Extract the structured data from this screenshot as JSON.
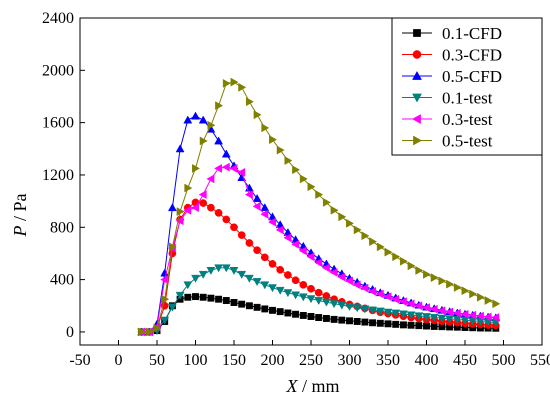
{
  "chart_data": {
    "type": "line",
    "xlabel": {
      "var": "X",
      "unit": " / mm"
    },
    "ylabel": {
      "var": "P",
      "unit": " / Pa"
    },
    "xlim": [
      -50,
      550
    ],
    "ylim": [
      -100,
      2400
    ],
    "xticks": [
      -50,
      0,
      50,
      100,
      150,
      200,
      250,
      300,
      350,
      400,
      450,
      500,
      550
    ],
    "yticks": [
      0,
      400,
      800,
      1200,
      1600,
      2000,
      2400
    ],
    "legend_position": "top-right",
    "series": [
      {
        "name": "0.1-CFD",
        "color": "#000000",
        "marker": "square",
        "x": [
          30,
          40,
          50,
          60,
          70,
          80,
          90,
          100,
          110,
          120,
          130,
          140,
          150,
          160,
          170,
          180,
          190,
          200,
          210,
          220,
          230,
          240,
          250,
          260,
          270,
          280,
          290,
          300,
          310,
          320,
          330,
          340,
          350,
          360,
          370,
          380,
          390,
          400,
          410,
          420,
          430,
          440,
          450,
          460,
          470,
          480,
          490
        ],
        "y": [
          0,
          0,
          10,
          80,
          200,
          250,
          265,
          270,
          265,
          258,
          250,
          240,
          225,
          212,
          200,
          188,
          176,
          165,
          155,
          145,
          135,
          126,
          118,
          110,
          103,
          96,
          90,
          85,
          80,
          75,
          70,
          66,
          62,
          58,
          54,
          51,
          48,
          45,
          42,
          40,
          38,
          36,
          34,
          32,
          30,
          29,
          28
        ]
      },
      {
        "name": "0.3-CFD",
        "color": "#ff0000",
        "marker": "circle",
        "x": [
          30,
          40,
          50,
          60,
          70,
          80,
          90,
          100,
          110,
          120,
          130,
          140,
          150,
          160,
          170,
          180,
          190,
          200,
          210,
          220,
          230,
          240,
          250,
          260,
          270,
          280,
          290,
          300,
          310,
          320,
          330,
          340,
          350,
          360,
          370,
          380,
          390,
          400,
          410,
          420,
          430,
          440,
          450,
          460,
          470,
          480,
          490
        ],
        "y": [
          0,
          0,
          30,
          200,
          600,
          860,
          950,
          990,
          985,
          950,
          910,
          860,
          800,
          740,
          680,
          625,
          570,
          520,
          475,
          435,
          395,
          360,
          330,
          300,
          275,
          250,
          230,
          210,
          195,
          180,
          165,
          150,
          140,
          130,
          120,
          110,
          102,
          95,
          88,
          82,
          76,
          71,
          66,
          61,
          57,
          53,
          50
        ]
      },
      {
        "name": "0.5-CFD",
        "color": "#0000ff",
        "marker": "triangle-up",
        "x": [
          30,
          40,
          50,
          60,
          70,
          80,
          90,
          100,
          110,
          120,
          130,
          140,
          150,
          160,
          170,
          180,
          190,
          200,
          210,
          220,
          230,
          240,
          250,
          260,
          270,
          280,
          290,
          300,
          310,
          320,
          330,
          340,
          350,
          360,
          370,
          380,
          390,
          400,
          410,
          420,
          430,
          440,
          450,
          460,
          470,
          480,
          490
        ],
        "y": [
          0,
          0,
          60,
          450,
          950,
          1400,
          1620,
          1650,
          1620,
          1550,
          1460,
          1360,
          1270,
          1180,
          1100,
          1020,
          950,
          880,
          820,
          760,
          705,
          655,
          605,
          560,
          520,
          480,
          445,
          410,
          380,
          350,
          325,
          300,
          280,
          260,
          240,
          222,
          205,
          190,
          178,
          166,
          155,
          145,
          136,
          128,
          121,
          114,
          108
        ]
      },
      {
        "name": "0.1-test",
        "color": "#008080",
        "marker": "triangle-down",
        "x": [
          30,
          40,
          50,
          60,
          70,
          80,
          90,
          100,
          110,
          120,
          130,
          140,
          150,
          160,
          170,
          180,
          190,
          200,
          210,
          220,
          230,
          240,
          250,
          260,
          270,
          280,
          290,
          300,
          310,
          320,
          330,
          340,
          350,
          360,
          370,
          380,
          390,
          400,
          410,
          420,
          430,
          440,
          450,
          460,
          470,
          480,
          490
        ],
        "y": [
          0,
          0,
          10,
          90,
          190,
          280,
          360,
          410,
          440,
          470,
          490,
          490,
          470,
          440,
          410,
          385,
          360,
          338,
          318,
          300,
          283,
          268,
          254,
          240,
          228,
          216,
          205,
          195,
          185,
          176,
          167,
          159,
          151,
          144,
          137,
          130,
          123,
          117,
          111,
          105,
          100,
          95,
          90,
          85,
          80,
          76,
          72
        ]
      },
      {
        "name": "0.3-test",
        "color": "#ff00ff",
        "marker": "triangle-left",
        "x": [
          30,
          40,
          50,
          60,
          70,
          80,
          90,
          100,
          110,
          120,
          130,
          140,
          150,
          160,
          170,
          180,
          190,
          200,
          210,
          220,
          230,
          240,
          250,
          260,
          270,
          280,
          290,
          300,
          310,
          320,
          330,
          340,
          350,
          360,
          370,
          380,
          390,
          400,
          410,
          420,
          430,
          440,
          450,
          460,
          470,
          480,
          490
        ],
        "y": [
          0,
          0,
          40,
          400,
          640,
          850,
          930,
          950,
          1050,
          1170,
          1250,
          1260,
          1250,
          1220,
          1050,
          960,
          900,
          840,
          780,
          720,
          670,
          620,
          575,
          530,
          490,
          455,
          420,
          390,
          360,
          335,
          310,
          290,
          270,
          250,
          232,
          215,
          200,
          186,
          174,
          162,
          152,
          143,
          135,
          128,
          121,
          115,
          110
        ]
      },
      {
        "name": "0.5-test",
        "color": "#808000",
        "marker": "triangle-right",
        "x": [
          30,
          40,
          50,
          60,
          70,
          80,
          90,
          100,
          110,
          120,
          130,
          140,
          150,
          160,
          170,
          180,
          190,
          200,
          210,
          220,
          230,
          240,
          250,
          260,
          270,
          280,
          290,
          300,
          310,
          320,
          330,
          340,
          350,
          360,
          370,
          380,
          390,
          400,
          410,
          420,
          430,
          440,
          450,
          460,
          470,
          480,
          490
        ],
        "y": [
          0,
          0,
          30,
          250,
          650,
          920,
          1100,
          1250,
          1460,
          1580,
          1730,
          1900,
          1910,
          1870,
          1760,
          1660,
          1560,
          1470,
          1390,
          1310,
          1240,
          1170,
          1110,
          1050,
          990,
          930,
          880,
          830,
          780,
          735,
          690,
          650,
          610,
          575,
          540,
          505,
          470,
          440,
          415,
          390,
          365,
          340,
          315,
          290,
          265,
          240,
          215
        ]
      }
    ]
  }
}
